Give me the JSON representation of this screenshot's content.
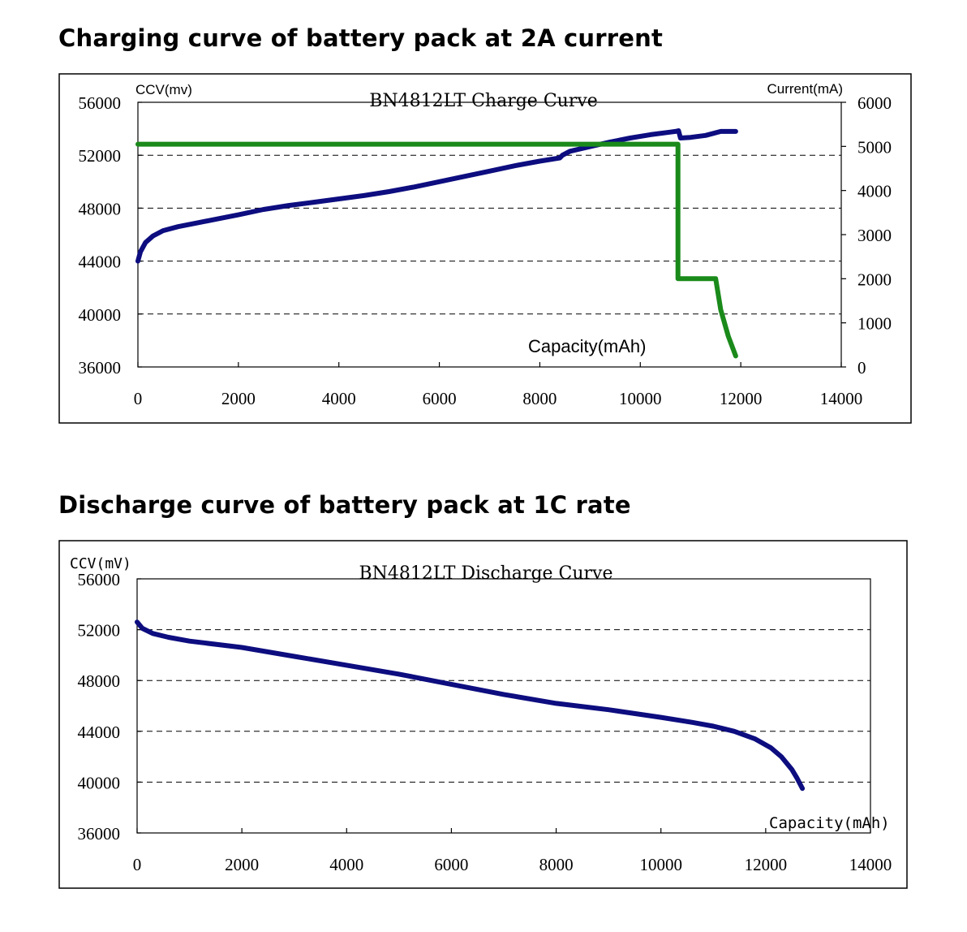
{
  "headings": {
    "charge": "Charging curve of battery pack at 2A current",
    "discharge": "Discharge curve of battery pack at 1C rate"
  },
  "chart_data": [
    {
      "type": "line",
      "title": "BN4812LT Charge Curve",
      "xlabel": "Capacity(mAh)",
      "ylabel": "CCV(mv)",
      "y2label": "Current(mA)",
      "xlim": [
        0,
        14000
      ],
      "ylim": [
        36000,
        56000
      ],
      "y2lim": [
        0,
        6000
      ],
      "xticks": [
        0,
        2000,
        4000,
        6000,
        8000,
        10000,
        12000,
        14000
      ],
      "yticks": [
        36000,
        40000,
        44000,
        48000,
        52000,
        56000
      ],
      "y2ticks": [
        0,
        1000,
        2000,
        3000,
        4000,
        5000,
        6000
      ],
      "grid": "horizontal dashed",
      "colors": {
        "voltage": "#0d0d80",
        "current": "#1a8a1a"
      },
      "series": [
        {
          "axis": "left",
          "color": "#0d0d80",
          "x": [
            0,
            50,
            150,
            300,
            500,
            800,
            1200,
            1600,
            2000,
            2500,
            3000,
            3500,
            4000,
            4500,
            5000,
            5500,
            6000,
            6500,
            7000,
            7500,
            8000,
            8400,
            8450,
            8600,
            9000,
            9400,
            9800,
            10200,
            10600,
            10700,
            10760,
            10800,
            11000,
            11300,
            11600,
            11900
          ],
          "values": [
            44000,
            44700,
            45400,
            45900,
            46300,
            46600,
            46900,
            47200,
            47500,
            47900,
            48200,
            48450,
            48700,
            48950,
            49250,
            49600,
            50000,
            50400,
            50800,
            51200,
            51550,
            51800,
            52000,
            52300,
            52650,
            53000,
            53300,
            53550,
            53750,
            53800,
            53850,
            53300,
            53350,
            53500,
            53800,
            53800
          ]
        },
        {
          "axis": "right",
          "color": "#1a8a1a",
          "x": [
            0,
            10750,
            10750,
            11500,
            11600,
            11750,
            11900
          ],
          "values": [
            5050,
            5050,
            2000,
            2000,
            1300,
            700,
            250
          ]
        }
      ]
    },
    {
      "type": "line",
      "title": "BN4812LT Discharge Curve",
      "xlabel": "Capacity(mAh)",
      "ylabel": "CCV(mV)",
      "xlim": [
        0,
        14000
      ],
      "ylim": [
        36000,
        56000
      ],
      "xticks": [
        0,
        2000,
        4000,
        6000,
        8000,
        10000,
        12000,
        14000
      ],
      "yticks": [
        36000,
        40000,
        44000,
        48000,
        52000,
        56000
      ],
      "grid": "horizontal dashed",
      "colors": {
        "voltage": "#0d0d80"
      },
      "series": [
        {
          "axis": "left",
          "color": "#0d0d80",
          "x": [
            0,
            100,
            300,
            600,
            1000,
            2000,
            3000,
            4000,
            5000,
            6000,
            7000,
            8000,
            9000,
            10000,
            10600,
            11000,
            11400,
            11800,
            12100,
            12300,
            12500,
            12600,
            12700
          ],
          "values": [
            52600,
            52100,
            51700,
            51400,
            51100,
            50600,
            49900,
            49200,
            48500,
            47700,
            46900,
            46200,
            45700,
            45100,
            44700,
            44400,
            44000,
            43400,
            42700,
            42000,
            41000,
            40300,
            39500
          ]
        }
      ]
    }
  ]
}
